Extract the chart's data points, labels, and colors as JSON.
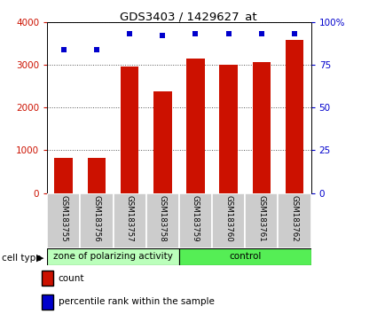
{
  "title": "GDS3403 / 1429627_at",
  "samples": [
    "GSM183755",
    "GSM183756",
    "GSM183757",
    "GSM183758",
    "GSM183759",
    "GSM183760",
    "GSM183761",
    "GSM183762"
  ],
  "counts": [
    820,
    820,
    2950,
    2380,
    3150,
    3000,
    3060,
    3580
  ],
  "percentiles": [
    84,
    84,
    93,
    92,
    93,
    93,
    93,
    93
  ],
  "groups": [
    {
      "label": "zone of polarizing activity",
      "start": 0,
      "end": 4,
      "color": "#bbffbb"
    },
    {
      "label": "control",
      "start": 4,
      "end": 8,
      "color": "#55ee55"
    }
  ],
  "cell_type_label": "cell type",
  "bar_color": "#cc1100",
  "dot_color": "#0000cc",
  "ylim_left": [
    0,
    4000
  ],
  "ylim_right": [
    0,
    100
  ],
  "yticks_left": [
    0,
    1000,
    2000,
    3000,
    4000
  ],
  "yticks_right": [
    0,
    25,
    50,
    75,
    100
  ],
  "ytick_labels_right": [
    "0",
    "25",
    "50",
    "75",
    "100%"
  ],
  "background_color": "#ffffff",
  "plot_bg_color": "#ffffff",
  "grid_color": "#000000",
  "legend_count_label": "count",
  "legend_percentile_label": "percentile rank within the sample",
  "bar_width": 0.55,
  "sample_bg": "#cccccc",
  "sample_border": "#ffffff"
}
